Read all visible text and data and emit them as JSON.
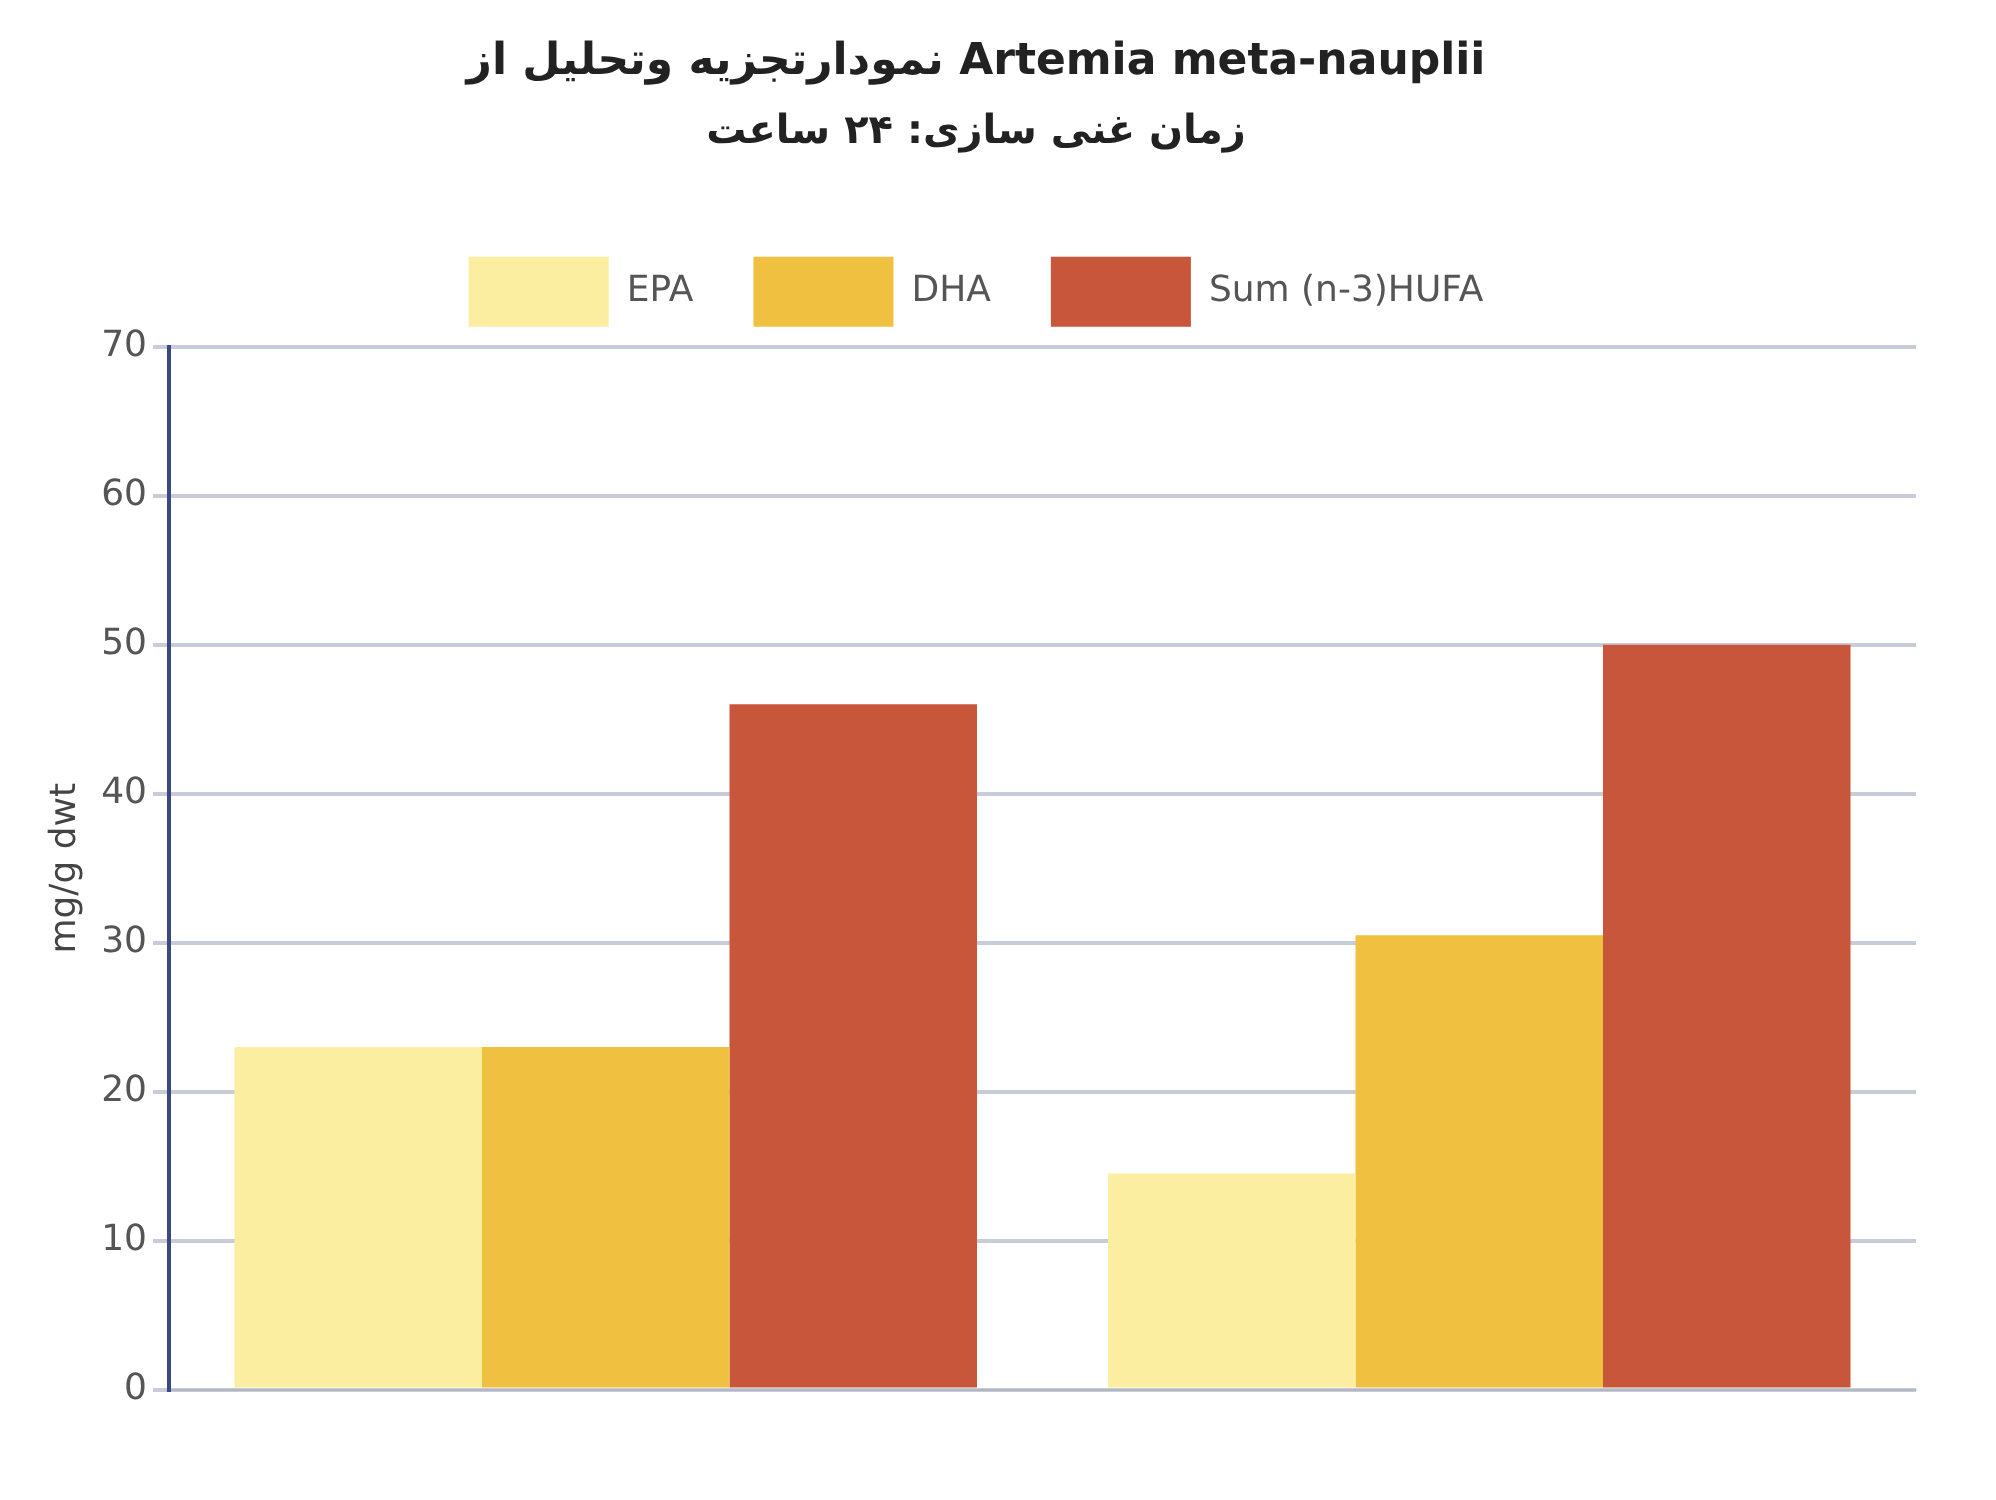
{
  "chart_data": {
    "type": "bar",
    "title": "نمودارتجزیه وتحلیل از Artemia meta-nauplii",
    "subtitle": "زمان غنی سازی: ۲۴ ساعت",
    "ylabel": "mg/g dwt",
    "categories": [
      null,
      null
    ],
    "series": [
      {
        "name": "EPA",
        "color": "#fbeea0",
        "values": [
          23,
          14.5
        ]
      },
      {
        "name": "DHA",
        "color": "#f0c040",
        "values": [
          23,
          30.5
        ]
      },
      {
        "name": "Sum (n-3)HUFA",
        "color": "#c8563a",
        "values": [
          46,
          50
        ]
      }
    ],
    "ylim": [
      0,
      70
    ],
    "yticks": [
      0,
      10,
      20,
      30,
      40,
      50,
      60,
      70
    ],
    "grid": "y",
    "legend": "top"
  }
}
